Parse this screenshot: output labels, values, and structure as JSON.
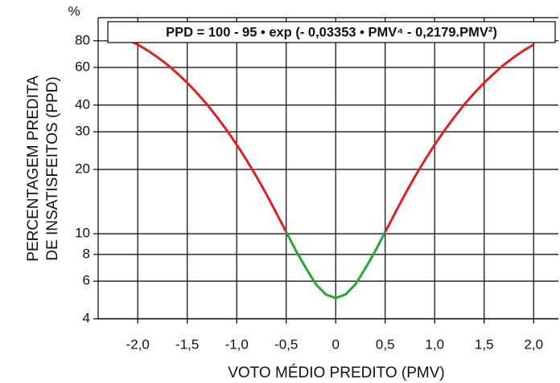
{
  "chart_data": {
    "type": "line",
    "title": "PPD = 100 - 95 • exp (- 0,03353 • PMV⁴ - 0,2179.PMV²)",
    "x_label": "VOTO MÉDIO PREDITO (PMV)",
    "y_label": [
      "PERCENTAGEM PREDITA",
      "DE INSATISFEITOS (PPD)"
    ],
    "y_unit": "%",
    "x": [
      -2.1,
      -2.0,
      -1.9,
      -1.8,
      -1.7,
      -1.6,
      -1.5,
      -1.4,
      -1.3,
      -1.2,
      -1.1,
      -1.0,
      -0.9,
      -0.8,
      -0.7,
      -0.6,
      -0.5,
      -0.4,
      -0.3,
      -0.2,
      -0.1,
      0,
      0.1,
      0.2,
      0.3,
      0.4,
      0.5,
      0.6,
      0.7,
      0.8,
      0.9,
      1.0,
      1.1,
      1.2,
      1.3,
      1.4,
      1.5,
      1.6,
      1.7,
      1.8,
      1.9,
      2.0
    ],
    "series": [
      {
        "name": "PPD",
        "color": "#e02020",
        "values": [
          81.1,
          76.8,
          72.1,
          67.0,
          61.8,
          56.3,
          50.9,
          45.5,
          40.3,
          35.2,
          30.5,
          26.1,
          22.1,
          18.5,
          15.3,
          12.5,
          10.2,
          null,
          null,
          null,
          null,
          null,
          null,
          null,
          null,
          null,
          10.2,
          12.5,
          15.3,
          18.5,
          22.1,
          26.1,
          30.5,
          35.2,
          40.3,
          45.5,
          50.9,
          56.3,
          61.8,
          67.0,
          72.1,
          76.8
        ]
      },
      {
        "name": "PPD",
        "color": "#22aa33",
        "values": [
          null,
          null,
          null,
          null,
          null,
          null,
          null,
          null,
          null,
          null,
          null,
          null,
          null,
          null,
          null,
          null,
          10.2,
          8.3,
          6.9,
          5.8,
          5.2,
          5.0,
          5.2,
          5.8,
          6.9,
          8.3,
          10.2,
          null,
          null,
          null,
          null,
          null,
          null,
          null,
          null,
          null,
          null,
          null,
          null,
          null,
          null,
          null
        ]
      }
    ],
    "xlim": [
      -2.4,
      2.25
    ],
    "xticks": [
      {
        "value": -2.0,
        "label": "-2,0"
      },
      {
        "value": -1.5,
        "label": "-1,5"
      },
      {
        "value": -1.0,
        "label": "-1,0"
      },
      {
        "value": -0.5,
        "label": "-0,5"
      },
      0,
      {
        "value": 0.5,
        "label": "0,5"
      },
      {
        "value": 1.0,
        "label": "1,0"
      },
      {
        "value": 1.5,
        "label": "1,5"
      },
      {
        "value": 2.0,
        "label": "2,0"
      }
    ],
    "ylim": [
      4,
      100
    ],
    "yticks": [
      4,
      6,
      8,
      10,
      20,
      30,
      40,
      60,
      80
    ],
    "y_log": true,
    "grid": true
  }
}
